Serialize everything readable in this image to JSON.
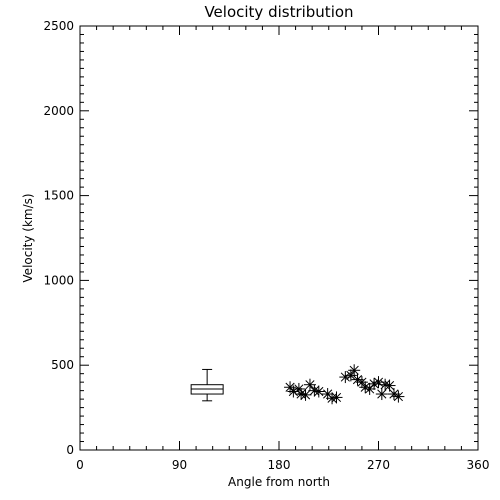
{
  "chart_data": {
    "type": "scatter",
    "title": "Velocity distribution",
    "xlabel": "Angle from north",
    "ylabel": "Velocity (km/s)",
    "xlim": [
      0,
      360
    ],
    "ylim": [
      0,
      2500
    ],
    "xticks": [
      0,
      90,
      180,
      270,
      360
    ],
    "yticks": [
      0,
      500,
      1000,
      1500,
      2000,
      2500
    ],
    "grid": false,
    "box": {
      "x": 115,
      "whisker_low": 290,
      "q1": 330,
      "median": 360,
      "q3": 385,
      "whisker_high": 475
    },
    "points": [
      {
        "x": 190,
        "y": 370
      },
      {
        "x": 193,
        "y": 345
      },
      {
        "x": 198,
        "y": 360
      },
      {
        "x": 200,
        "y": 330
      },
      {
        "x": 204,
        "y": 325
      },
      {
        "x": 208,
        "y": 385
      },
      {
        "x": 212,
        "y": 350
      },
      {
        "x": 216,
        "y": 345
      },
      {
        "x": 224,
        "y": 330
      },
      {
        "x": 228,
        "y": 305
      },
      {
        "x": 232,
        "y": 310
      },
      {
        "x": 240,
        "y": 430
      },
      {
        "x": 245,
        "y": 440
      },
      {
        "x": 248,
        "y": 470
      },
      {
        "x": 251,
        "y": 415
      },
      {
        "x": 255,
        "y": 400
      },
      {
        "x": 258,
        "y": 370
      },
      {
        "x": 262,
        "y": 360
      },
      {
        "x": 266,
        "y": 390
      },
      {
        "x": 270,
        "y": 400
      },
      {
        "x": 273,
        "y": 330
      },
      {
        "x": 276,
        "y": 385
      },
      {
        "x": 280,
        "y": 380
      },
      {
        "x": 284,
        "y": 330
      },
      {
        "x": 288,
        "y": 315
      }
    ]
  }
}
